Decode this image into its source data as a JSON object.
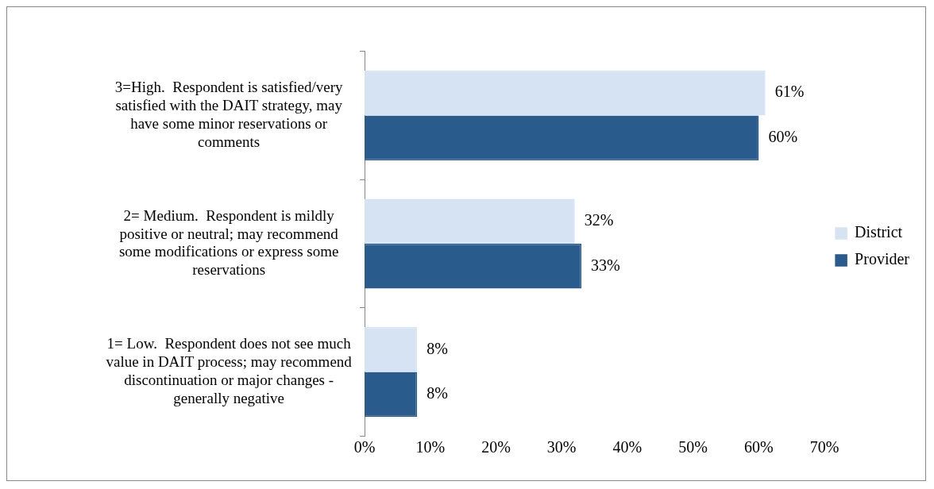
{
  "chart_data": {
    "type": "bar",
    "orientation": "horizontal",
    "categories": [
      "3=High.  Respondent is satisfied/very satisfied with the DAIT strategy, may have some minor reservations or comments",
      "2= Medium.  Respondent is mildly positive or neutral; may recommend some modifications or express some reservations",
      "1= Low.  Respondent does not see much value in DAIT process; may recommend discontinuation or major changes - generally negative"
    ],
    "series": [
      {
        "name": "District",
        "color": "#d6e3f3",
        "values": [
          61,
          32,
          8
        ],
        "value_labels": [
          "61%",
          "32%",
          "8%"
        ]
      },
      {
        "name": "Provider",
        "color": "#2a5b8d",
        "values": [
          60,
          33,
          8
        ],
        "value_labels": [
          "60%",
          "33%",
          "8%"
        ]
      }
    ],
    "xlim": [
      0,
      70
    ],
    "xticks": [
      {
        "value": 0,
        "label": "0%"
      },
      {
        "value": 10,
        "label": "10%"
      },
      {
        "value": 20,
        "label": "20%"
      },
      {
        "value": 30,
        "label": "30%"
      },
      {
        "value": 40,
        "label": "40%"
      },
      {
        "value": 50,
        "label": "50%"
      },
      {
        "value": 60,
        "label": "60%"
      },
      {
        "value": 70,
        "label": "70%"
      }
    ],
    "grid": false,
    "legend": "right"
  }
}
